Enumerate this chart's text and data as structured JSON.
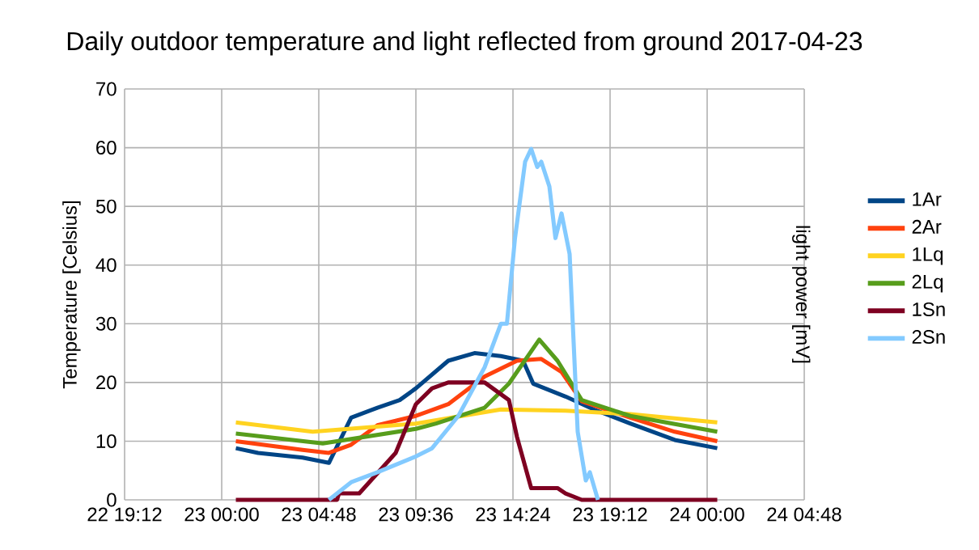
{
  "chart_data": {
    "type": "line",
    "title": "Daily outdoor temperature and light reflected from ground 2017-04-23",
    "ylabel": "Temperature [Celsius]",
    "y2label": "light power [mV]",
    "xlim": [
      "2017-04-22T19:12",
      "2017-04-24T04:48"
    ],
    "xticks": [
      {
        "value": "2017-04-22T19:12",
        "label": "22 19:12"
      },
      {
        "value": "2017-04-23T00:00",
        "label": "23 00:00"
      },
      {
        "value": "2017-04-23T04:48",
        "label": "23 04:48"
      },
      {
        "value": "2017-04-23T09:36",
        "label": "23 09:36"
      },
      {
        "value": "2017-04-23T14:24",
        "label": "23 14:24"
      },
      {
        "value": "2017-04-23T19:12",
        "label": "23 19:12"
      },
      {
        "value": "2017-04-24T00:00",
        "label": "24 00:00"
      },
      {
        "value": "2017-04-24T04:48",
        "label": "24 04:48"
      }
    ],
    "ylim": [
      0,
      70
    ],
    "yticks": [
      0,
      10,
      20,
      30,
      40,
      50,
      60,
      70
    ],
    "grid": true,
    "legend": "right",
    "marker": "none",
    "line_style": "solid",
    "series": [
      {
        "name": "1Ar",
        "color": "#004586",
        "x": [
          "2017-04-23T00:42",
          "2017-04-23T01:48",
          "2017-04-23T04:00",
          "2017-04-23T05:18",
          "2017-04-23T06:24",
          "2017-04-23T07:42",
          "2017-04-23T08:48",
          "2017-04-23T09:36",
          "2017-04-23T11:12",
          "2017-04-23T12:30",
          "2017-04-23T13:48",
          "2017-04-23T14:54",
          "2017-04-23T15:24",
          "2017-04-23T17:00",
          "2017-04-23T18:24",
          "2017-04-23T20:12",
          "2017-04-23T22:24",
          "2017-04-24T00:30"
        ],
        "values": [
          8.8,
          8,
          7.2,
          6.3,
          14,
          15.7,
          17,
          19,
          23.7,
          25,
          24.5,
          23.7,
          19.8,
          17.6,
          15.4,
          13,
          10.2,
          8.8
        ]
      },
      {
        "name": "2Ar",
        "color": "#ff420e",
        "x": [
          "2017-04-23T00:42",
          "2017-04-23T04:00",
          "2017-04-23T05:18",
          "2017-04-23T06:24",
          "2017-04-23T07:42",
          "2017-04-23T09:36",
          "2017-04-23T11:12",
          "2017-04-23T13:00",
          "2017-04-23T14:36",
          "2017-04-23T15:48",
          "2017-04-23T16:48",
          "2017-04-23T17:48",
          "2017-04-23T20:12",
          "2017-04-23T22:24",
          "2017-04-24T00:30"
        ],
        "values": [
          10,
          8.5,
          8,
          9.4,
          12.7,
          14.3,
          16.3,
          21,
          23.7,
          24,
          21.8,
          16.8,
          14,
          11.6,
          10
        ]
      },
      {
        "name": "1Lq",
        "color": "#ffd320",
        "x": [
          "2017-04-23T00:42",
          "2017-04-23T04:30",
          "2017-04-23T09:36",
          "2017-04-23T13:48",
          "2017-04-23T17:00",
          "2017-04-23T20:12",
          "2017-04-24T00:30"
        ],
        "values": [
          13.2,
          11.6,
          13,
          15.4,
          15.2,
          14.6,
          13.2
        ]
      },
      {
        "name": "2Lq",
        "color": "#579d1c",
        "x": [
          "2017-04-23T00:42",
          "2017-04-23T05:00",
          "2017-04-23T09:36",
          "2017-04-23T10:36",
          "2017-04-23T13:00",
          "2017-04-23T14:12",
          "2017-04-23T15:42",
          "2017-04-23T16:36",
          "2017-04-23T17:48",
          "2017-04-23T20:12",
          "2017-04-24T00:30"
        ],
        "values": [
          11.3,
          9.6,
          12.1,
          13,
          15.7,
          19.8,
          27.3,
          23.7,
          17,
          14.3,
          11.6
        ]
      },
      {
        "name": "1Sn",
        "color": "#7e0021",
        "x": [
          "2017-04-23T00:42",
          "2017-04-23T05:42",
          "2017-04-23T05:48",
          "2017-04-23T06:48",
          "2017-04-23T08:36",
          "2017-04-23T09:36",
          "2017-04-23T10:24",
          "2017-04-23T11:12",
          "2017-04-23T13:00",
          "2017-04-23T14:12",
          "2017-04-23T14:36",
          "2017-04-23T15:18",
          "2017-04-23T16:36",
          "2017-04-23T17:00",
          "2017-04-23T17:48",
          "2017-04-24T00:30"
        ],
        "values": [
          0,
          0,
          1.1,
          1.1,
          8,
          16.3,
          19,
          20,
          20,
          17,
          10.7,
          2,
          2,
          1.1,
          0,
          0
        ]
      },
      {
        "name": "2Sn",
        "color": "#83caff",
        "x": [
          "2017-04-23T05:18",
          "2017-04-23T06:24",
          "2017-04-23T07:42",
          "2017-04-23T09:36",
          "2017-04-23T10:24",
          "2017-04-23T11:42",
          "2017-04-23T13:00",
          "2017-04-23T13:48",
          "2017-04-23T14:06",
          "2017-04-23T14:30",
          "2017-04-23T15:00",
          "2017-04-23T15:18",
          "2017-04-23T15:36",
          "2017-04-23T15:48",
          "2017-04-23T16:12",
          "2017-04-23T16:30",
          "2017-04-23T16:48",
          "2017-04-23T17:12",
          "2017-04-23T17:36",
          "2017-04-23T18:00",
          "2017-04-23T18:12",
          "2017-04-23T18:36"
        ],
        "values": [
          0,
          3,
          4.7,
          7.4,
          8.8,
          14.3,
          22.6,
          30,
          30,
          44.6,
          57.6,
          59.8,
          56.7,
          57.6,
          53.4,
          44.6,
          48.8,
          41.9,
          11.6,
          3.3,
          4.7,
          0
        ]
      }
    ]
  }
}
